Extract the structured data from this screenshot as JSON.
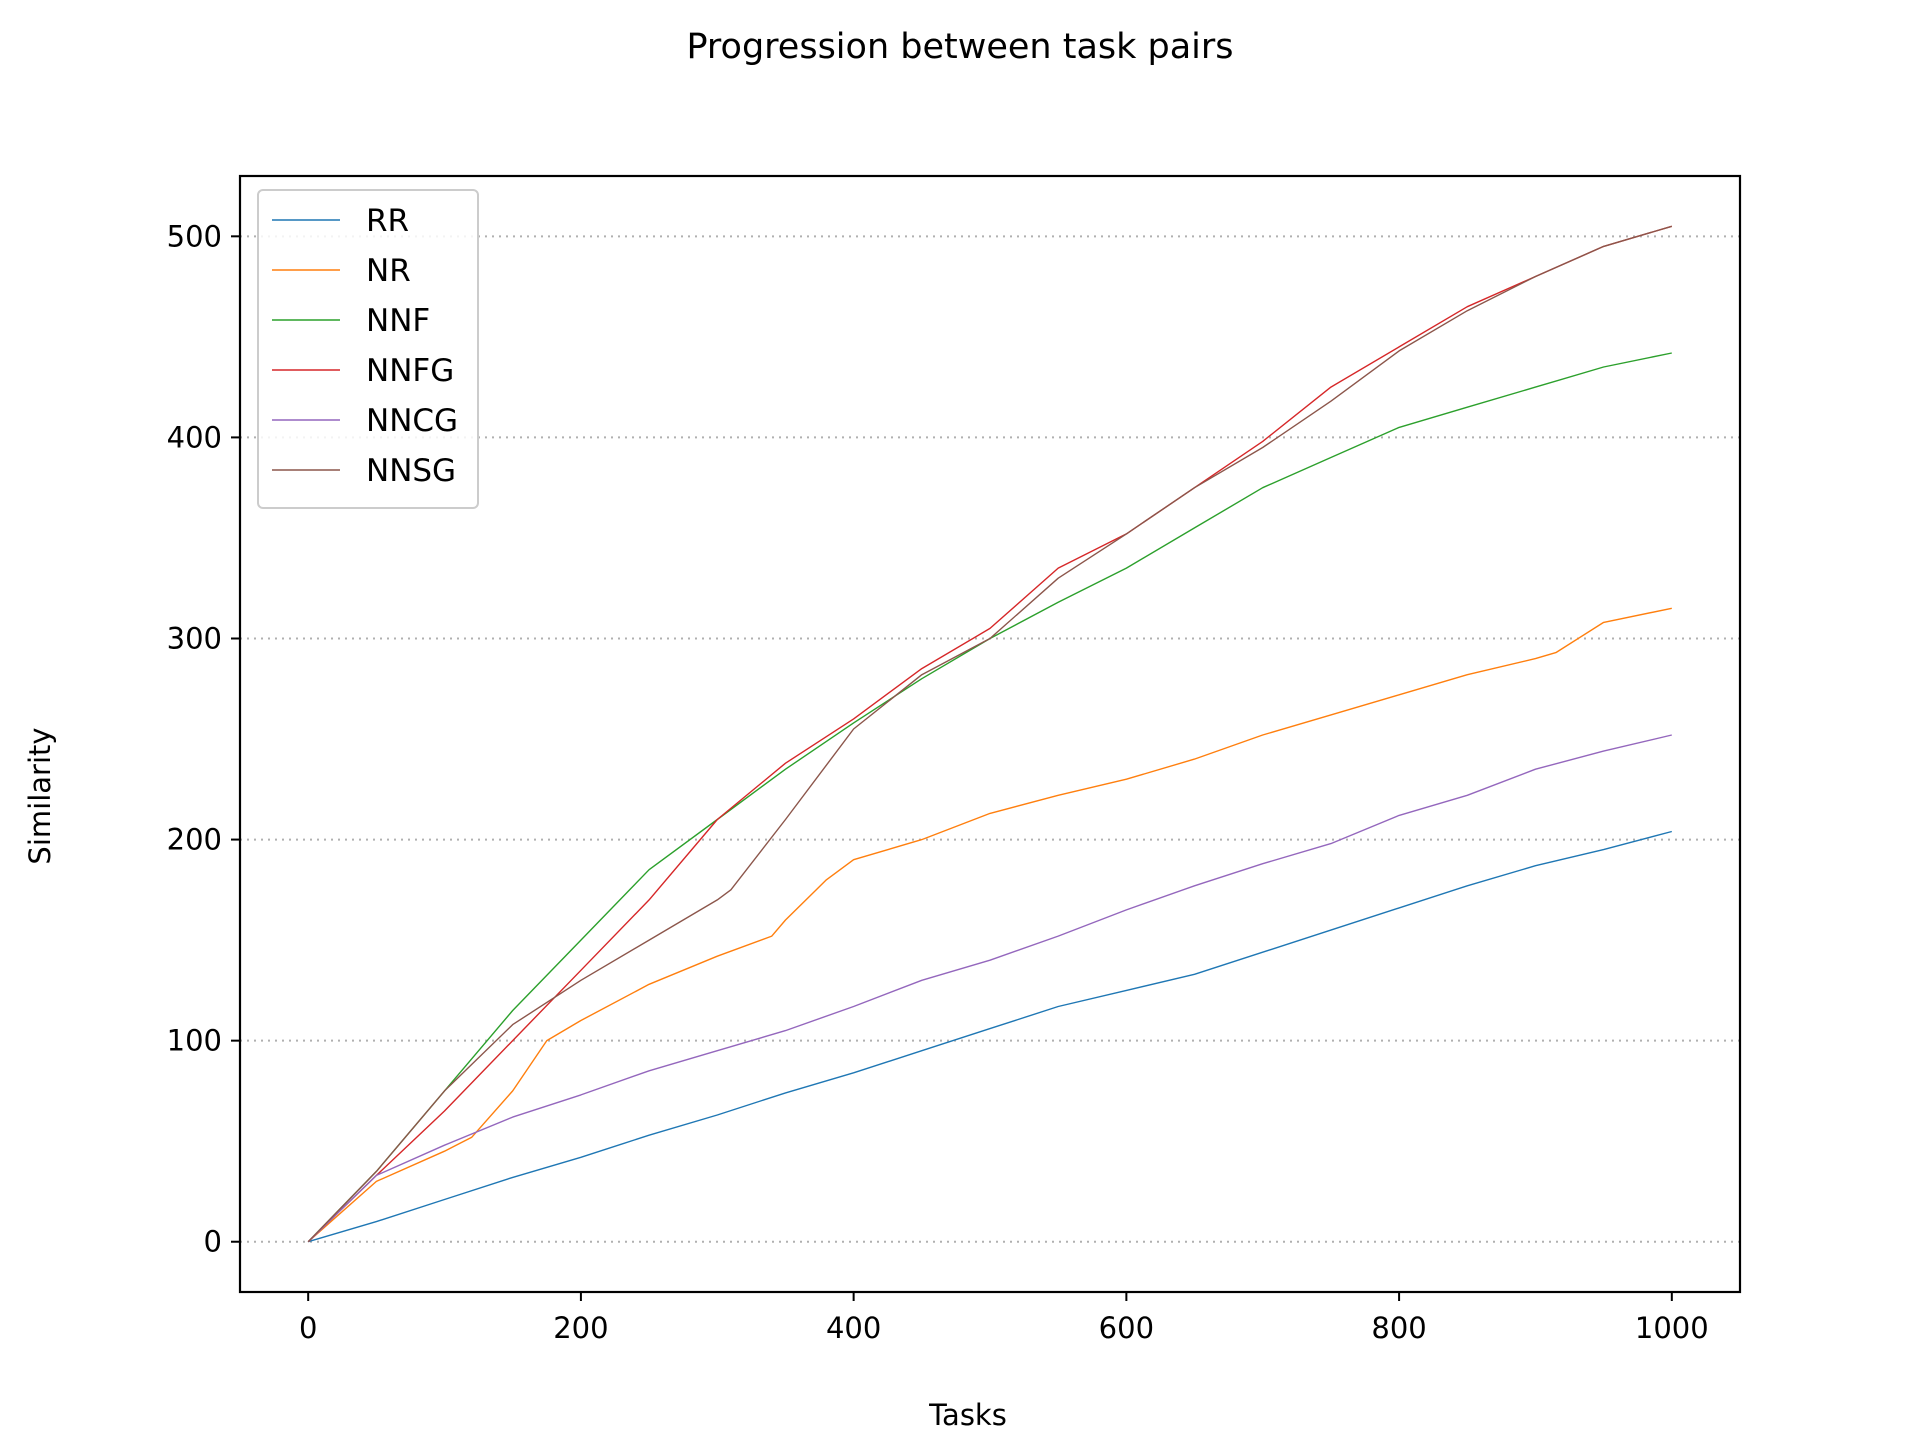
{
  "chart_data": {
    "type": "line",
    "title": "Progression between task pairs",
    "xlabel": "Tasks",
    "ylabel": "Similarity",
    "xlim": [
      -50,
      1050
    ],
    "ylim": [
      -25,
      530
    ],
    "xticks": [
      0,
      200,
      400,
      600,
      800,
      1000
    ],
    "yticks": [
      0,
      100,
      200,
      300,
      400,
      500
    ],
    "grid": "y-dotted",
    "legend": "top-left",
    "series": [
      {
        "name": "RR",
        "color": "#1f77b4",
        "x": [
          0,
          50,
          100,
          150,
          200,
          250,
          300,
          350,
          400,
          450,
          500,
          550,
          600,
          650,
          700,
          750,
          800,
          850,
          900,
          950,
          1000
        ],
        "y": [
          0,
          10,
          21,
          32,
          42,
          53,
          63,
          74,
          84,
          95,
          106,
          117,
          125,
          133,
          144,
          155,
          166,
          177,
          187,
          195,
          204
        ]
      },
      {
        "name": "NR",
        "color": "#ff7f0e",
        "x": [
          0,
          50,
          100,
          120,
          150,
          175,
          200,
          250,
          300,
          340,
          350,
          380,
          400,
          450,
          500,
          550,
          600,
          650,
          700,
          750,
          800,
          850,
          900,
          915,
          950,
          1000
        ],
        "y": [
          0,
          30,
          45,
          52,
          75,
          100,
          110,
          128,
          142,
          152,
          160,
          180,
          190,
          200,
          213,
          222,
          230,
          240,
          252,
          262,
          272,
          282,
          290,
          293,
          308,
          315
        ]
      },
      {
        "name": "NNF",
        "color": "#2ca02c",
        "x": [
          0,
          50,
          100,
          150,
          200,
          250,
          300,
          350,
          400,
          450,
          500,
          550,
          600,
          650,
          700,
          750,
          800,
          850,
          900,
          950,
          1000
        ],
        "y": [
          0,
          35,
          75,
          115,
          150,
          185,
          210,
          235,
          258,
          280,
          300,
          318,
          335,
          355,
          375,
          390,
          405,
          415,
          425,
          435,
          442
        ]
      },
      {
        "name": "NNFG",
        "color": "#d62728",
        "x": [
          0,
          50,
          100,
          150,
          200,
          250,
          300,
          350,
          400,
          450,
          500,
          550,
          600,
          650,
          700,
          750,
          800,
          850,
          900,
          950,
          1000
        ],
        "y": [
          0,
          33,
          65,
          100,
          135,
          170,
          210,
          238,
          260,
          285,
          305,
          335,
          352,
          375,
          398,
          425,
          445,
          465,
          480,
          495,
          505
        ]
      },
      {
        "name": "NNCG",
        "color": "#9467bd",
        "x": [
          0,
          50,
          100,
          150,
          200,
          250,
          300,
          350,
          400,
          450,
          500,
          550,
          600,
          650,
          700,
          750,
          800,
          850,
          900,
          950,
          1000
        ],
        "y": [
          0,
          33,
          48,
          62,
          73,
          85,
          95,
          105,
          117,
          130,
          140,
          152,
          165,
          177,
          188,
          198,
          212,
          222,
          235,
          244,
          252
        ]
      },
      {
        "name": "NNSG",
        "color": "#8c564b",
        "x": [
          0,
          50,
          100,
          150,
          200,
          250,
          300,
          310,
          350,
          400,
          450,
          500,
          550,
          600,
          650,
          700,
          750,
          800,
          850,
          900,
          950,
          1000
        ],
        "y": [
          0,
          35,
          75,
          108,
          130,
          150,
          170,
          175,
          210,
          255,
          282,
          300,
          330,
          352,
          375,
          395,
          418,
          443,
          463,
          480,
          495,
          505
        ]
      }
    ]
  }
}
